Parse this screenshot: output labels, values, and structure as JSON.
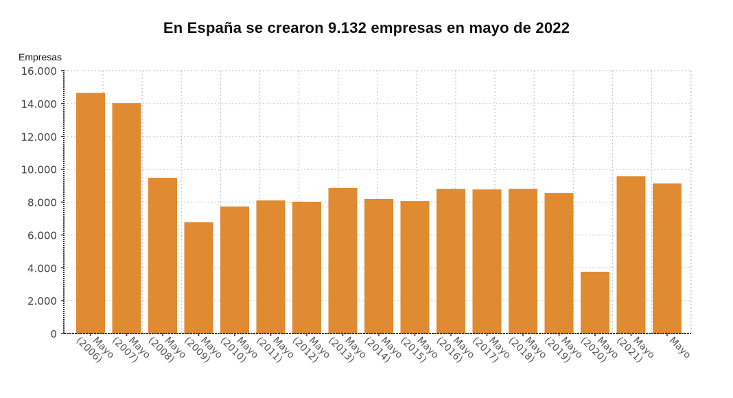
{
  "chart_data": {
    "type": "bar",
    "title": "En España se crearon 9.132 empresas en mayo de 2022",
    "ylabel": "Empresas",
    "xlabel": "",
    "ylim": [
      0,
      16000
    ],
    "yticks": [
      0,
      2000,
      4000,
      6000,
      8000,
      10000,
      12000,
      14000,
      16000
    ],
    "ytick_labels": [
      "0",
      "2.000",
      "4.000",
      "6.000",
      "8.000",
      "10.000",
      "12.000",
      "14.000",
      "16.000"
    ],
    "grid": true,
    "categories": [
      [
        "Mayo",
        "(2006)"
      ],
      [
        "Mayo",
        "(2007)"
      ],
      [
        "Mayo",
        "(2008)"
      ],
      [
        "Mayo",
        "(2009)"
      ],
      [
        "Mayo",
        "(2010)"
      ],
      [
        "Mayo",
        "(2011)"
      ],
      [
        "Mayo",
        "(2012)"
      ],
      [
        "Mayo",
        "(2013)"
      ],
      [
        "Mayo",
        "(2014)"
      ],
      [
        "Mayo",
        "(2015)"
      ],
      [
        "Mayo",
        "(2016)"
      ],
      [
        "Mayo",
        "(2017)"
      ],
      [
        "Mayo",
        "(2018)"
      ],
      [
        "Mayo",
        "(2019)"
      ],
      [
        "Mayo",
        "(2020)"
      ],
      [
        "Mayo",
        "(2021)"
      ],
      [
        "Mayo"
      ]
    ],
    "values": [
      14650,
      14030,
      9480,
      6770,
      7730,
      8100,
      8020,
      8860,
      8190,
      8060,
      8810,
      8770,
      8810,
      8560,
      3760,
      9570,
      9132
    ],
    "colors": {
      "bar": "#e08a32",
      "grid": "#c8c8c8",
      "axis": "#333333",
      "tick_text": "#444444"
    }
  }
}
